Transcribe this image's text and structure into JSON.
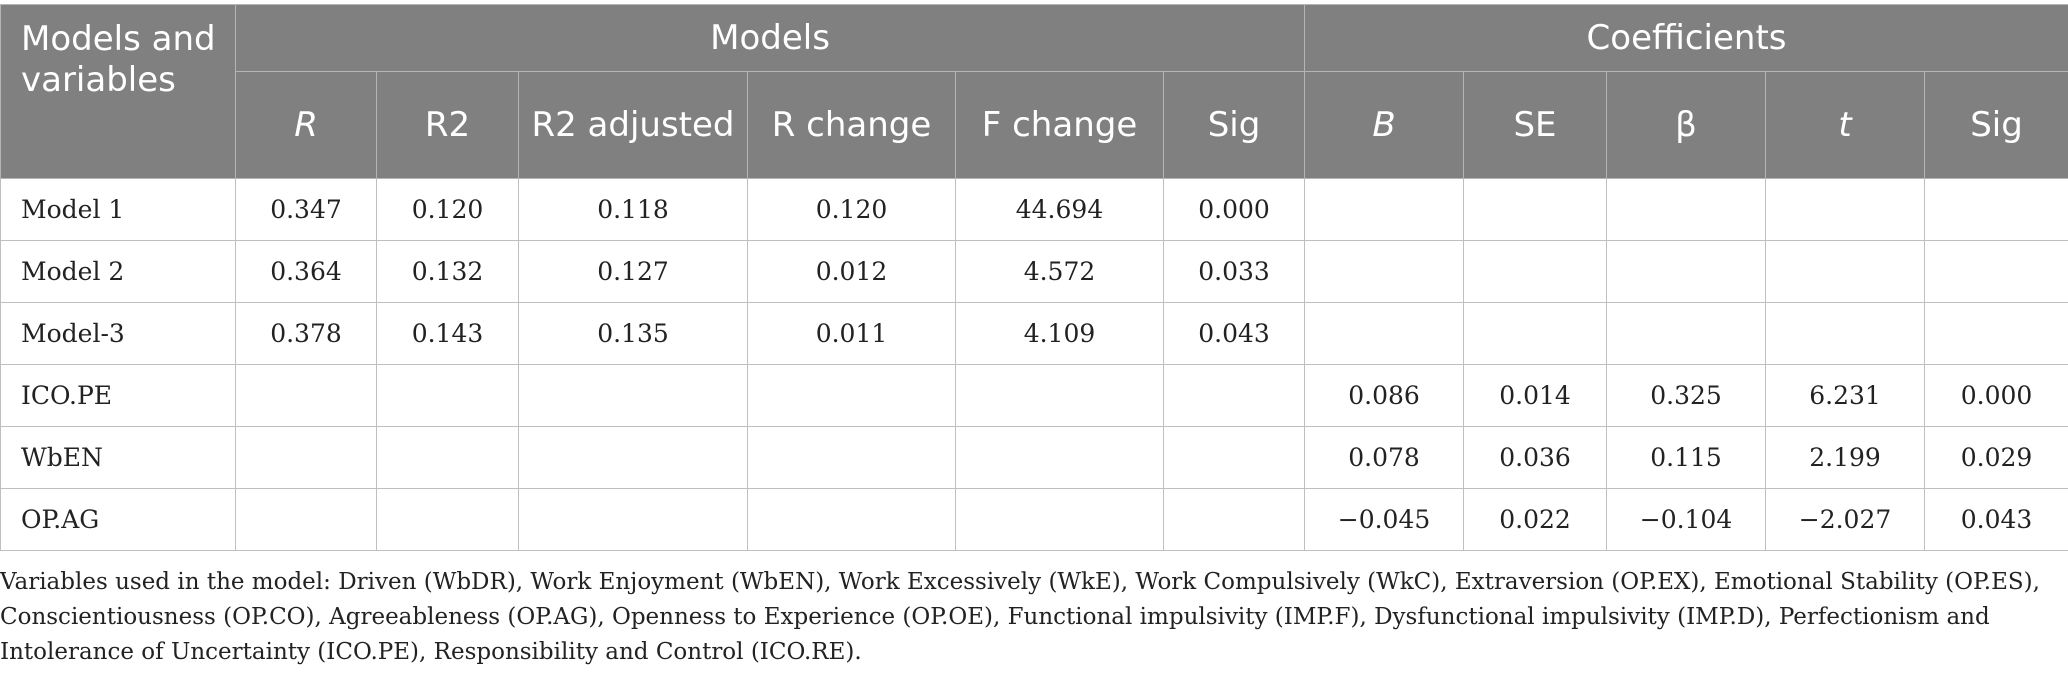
{
  "header": {
    "corner": "Models and variables",
    "group_models": "Models",
    "group_coefficients": "Coefficients",
    "columns": [
      "R",
      "R2",
      "R2 adjusted",
      "R change",
      "F change",
      "Sig",
      "B",
      "SE",
      "β",
      "t",
      "Sig"
    ]
  },
  "rows": [
    {
      "label": "Model 1",
      "cells": [
        "0.347",
        "0.120",
        "0.118",
        "0.120",
        "44.694",
        "0.000",
        "",
        "",
        "",
        "",
        ""
      ]
    },
    {
      "label": "Model 2",
      "cells": [
        "0.364",
        "0.132",
        "0.127",
        "0.012",
        "4.572",
        "0.033",
        "",
        "",
        "",
        "",
        ""
      ]
    },
    {
      "label": "Model-3",
      "cells": [
        "0.378",
        "0.143",
        "0.135",
        "0.011",
        "4.109",
        "0.043",
        "",
        "",
        "",
        "",
        ""
      ]
    },
    {
      "label": "ICO.PE",
      "cells": [
        "",
        "",
        "",
        "",
        "",
        "",
        "0.086",
        "0.014",
        "0.325",
        "6.231",
        "0.000"
      ]
    },
    {
      "label": "WbEN",
      "cells": [
        "",
        "",
        "",
        "",
        "",
        "",
        "0.078",
        "0.036",
        "0.115",
        "2.199",
        "0.029"
      ]
    },
    {
      "label": "OP.AG",
      "cells": [
        "",
        "",
        "",
        "",
        "",
        "",
        "−0.045",
        "0.022",
        "−0.104",
        "−2.027",
        "0.043"
      ]
    }
  ],
  "footnote": "Variables used in the model: Driven (WbDR), Work Enjoyment (WbEN), Work Excessively (WkE), Work Compulsively (WkC), Extraversion (OP.EX), Emotional Stability (OP.ES), Conscientiousness (OP.CO), Agreeableness (OP.AG), Openness to Experience (OP.OE), Functional impulsivity (IMP.F), Dysfunctional impulsivity (IMP.D), Perfectionism and Intolerance of Uncertainty (ICO.PE), Responsibility and Control (ICO.RE)."
}
